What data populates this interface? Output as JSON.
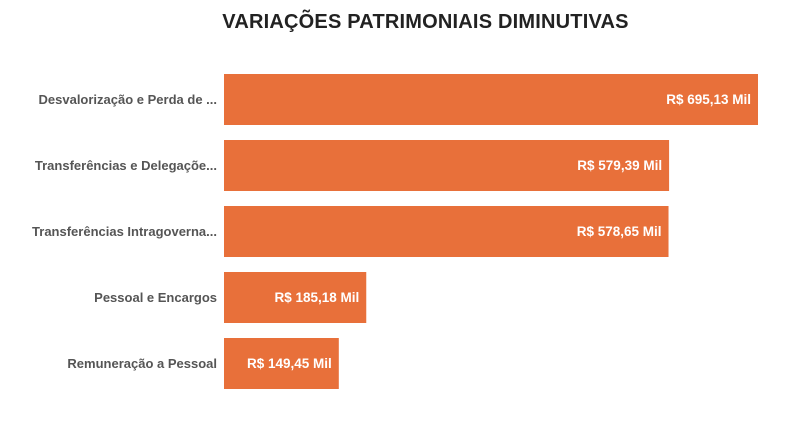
{
  "chart_data": {
    "type": "bar",
    "orientation": "horizontal",
    "title": "VARIAÇÕES PATRIMONIAIS DIMINUTIVAS",
    "categories": [
      "Desvalorização e Perda de ...",
      "Transferências e Delegaçõe...",
      "Transferências Intragoverna...",
      "Pessoal e Encargos",
      "Remuneração a Pessoal"
    ],
    "values": [
      695.13,
      579.39,
      578.65,
      185.18,
      149.45
    ],
    "value_labels": [
      "R$ 695,13 Mil",
      "R$ 579,39 Mil",
      "R$ 578,65 Mil",
      "R$ 185,18 Mil",
      "R$ 149,45 Mil"
    ],
    "unit": "Mil",
    "xlim": [
      0,
      695.13
    ],
    "grid": false,
    "legend": "none",
    "bar_color": "#E8703A"
  }
}
